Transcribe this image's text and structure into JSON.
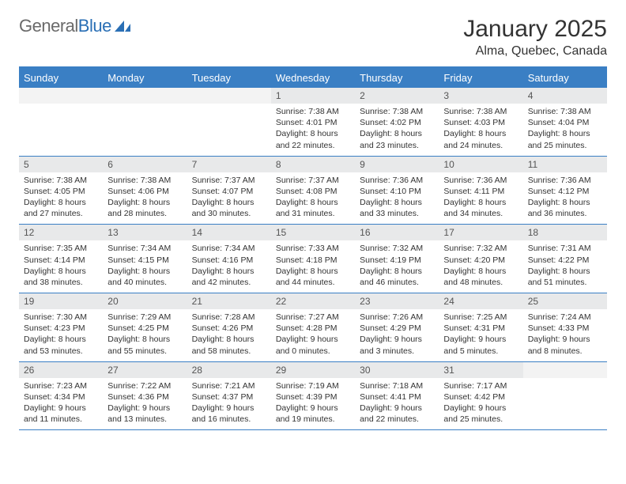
{
  "brand": {
    "part1": "General",
    "part2": "Blue"
  },
  "title": "January 2025",
  "location": "Alma, Quebec, Canada",
  "colors": {
    "header_bg": "#3a7fc4",
    "header_fg": "#ffffff",
    "daynum_bg": "#e8e9ea",
    "rule": "#3a7fc4",
    "text": "#333333"
  },
  "day_names": [
    "Sunday",
    "Monday",
    "Tuesday",
    "Wednesday",
    "Thursday",
    "Friday",
    "Saturday"
  ],
  "weeks": [
    [
      {
        "n": "",
        "sunrise": "",
        "sunset": "",
        "daylight1": "",
        "daylight2": ""
      },
      {
        "n": "",
        "sunrise": "",
        "sunset": "",
        "daylight1": "",
        "daylight2": ""
      },
      {
        "n": "",
        "sunrise": "",
        "sunset": "",
        "daylight1": "",
        "daylight2": ""
      },
      {
        "n": "1",
        "sunrise": "Sunrise: 7:38 AM",
        "sunset": "Sunset: 4:01 PM",
        "daylight1": "Daylight: 8 hours",
        "daylight2": "and 22 minutes."
      },
      {
        "n": "2",
        "sunrise": "Sunrise: 7:38 AM",
        "sunset": "Sunset: 4:02 PM",
        "daylight1": "Daylight: 8 hours",
        "daylight2": "and 23 minutes."
      },
      {
        "n": "3",
        "sunrise": "Sunrise: 7:38 AM",
        "sunset": "Sunset: 4:03 PM",
        "daylight1": "Daylight: 8 hours",
        "daylight2": "and 24 minutes."
      },
      {
        "n": "4",
        "sunrise": "Sunrise: 7:38 AM",
        "sunset": "Sunset: 4:04 PM",
        "daylight1": "Daylight: 8 hours",
        "daylight2": "and 25 minutes."
      }
    ],
    [
      {
        "n": "5",
        "sunrise": "Sunrise: 7:38 AM",
        "sunset": "Sunset: 4:05 PM",
        "daylight1": "Daylight: 8 hours",
        "daylight2": "and 27 minutes."
      },
      {
        "n": "6",
        "sunrise": "Sunrise: 7:38 AM",
        "sunset": "Sunset: 4:06 PM",
        "daylight1": "Daylight: 8 hours",
        "daylight2": "and 28 minutes."
      },
      {
        "n": "7",
        "sunrise": "Sunrise: 7:37 AM",
        "sunset": "Sunset: 4:07 PM",
        "daylight1": "Daylight: 8 hours",
        "daylight2": "and 30 minutes."
      },
      {
        "n": "8",
        "sunrise": "Sunrise: 7:37 AM",
        "sunset": "Sunset: 4:08 PM",
        "daylight1": "Daylight: 8 hours",
        "daylight2": "and 31 minutes."
      },
      {
        "n": "9",
        "sunrise": "Sunrise: 7:36 AM",
        "sunset": "Sunset: 4:10 PM",
        "daylight1": "Daylight: 8 hours",
        "daylight2": "and 33 minutes."
      },
      {
        "n": "10",
        "sunrise": "Sunrise: 7:36 AM",
        "sunset": "Sunset: 4:11 PM",
        "daylight1": "Daylight: 8 hours",
        "daylight2": "and 34 minutes."
      },
      {
        "n": "11",
        "sunrise": "Sunrise: 7:36 AM",
        "sunset": "Sunset: 4:12 PM",
        "daylight1": "Daylight: 8 hours",
        "daylight2": "and 36 minutes."
      }
    ],
    [
      {
        "n": "12",
        "sunrise": "Sunrise: 7:35 AM",
        "sunset": "Sunset: 4:14 PM",
        "daylight1": "Daylight: 8 hours",
        "daylight2": "and 38 minutes."
      },
      {
        "n": "13",
        "sunrise": "Sunrise: 7:34 AM",
        "sunset": "Sunset: 4:15 PM",
        "daylight1": "Daylight: 8 hours",
        "daylight2": "and 40 minutes."
      },
      {
        "n": "14",
        "sunrise": "Sunrise: 7:34 AM",
        "sunset": "Sunset: 4:16 PM",
        "daylight1": "Daylight: 8 hours",
        "daylight2": "and 42 minutes."
      },
      {
        "n": "15",
        "sunrise": "Sunrise: 7:33 AM",
        "sunset": "Sunset: 4:18 PM",
        "daylight1": "Daylight: 8 hours",
        "daylight2": "and 44 minutes."
      },
      {
        "n": "16",
        "sunrise": "Sunrise: 7:32 AM",
        "sunset": "Sunset: 4:19 PM",
        "daylight1": "Daylight: 8 hours",
        "daylight2": "and 46 minutes."
      },
      {
        "n": "17",
        "sunrise": "Sunrise: 7:32 AM",
        "sunset": "Sunset: 4:20 PM",
        "daylight1": "Daylight: 8 hours",
        "daylight2": "and 48 minutes."
      },
      {
        "n": "18",
        "sunrise": "Sunrise: 7:31 AM",
        "sunset": "Sunset: 4:22 PM",
        "daylight1": "Daylight: 8 hours",
        "daylight2": "and 51 minutes."
      }
    ],
    [
      {
        "n": "19",
        "sunrise": "Sunrise: 7:30 AM",
        "sunset": "Sunset: 4:23 PM",
        "daylight1": "Daylight: 8 hours",
        "daylight2": "and 53 minutes."
      },
      {
        "n": "20",
        "sunrise": "Sunrise: 7:29 AM",
        "sunset": "Sunset: 4:25 PM",
        "daylight1": "Daylight: 8 hours",
        "daylight2": "and 55 minutes."
      },
      {
        "n": "21",
        "sunrise": "Sunrise: 7:28 AM",
        "sunset": "Sunset: 4:26 PM",
        "daylight1": "Daylight: 8 hours",
        "daylight2": "and 58 minutes."
      },
      {
        "n": "22",
        "sunrise": "Sunrise: 7:27 AM",
        "sunset": "Sunset: 4:28 PM",
        "daylight1": "Daylight: 9 hours",
        "daylight2": "and 0 minutes."
      },
      {
        "n": "23",
        "sunrise": "Sunrise: 7:26 AM",
        "sunset": "Sunset: 4:29 PM",
        "daylight1": "Daylight: 9 hours",
        "daylight2": "and 3 minutes."
      },
      {
        "n": "24",
        "sunrise": "Sunrise: 7:25 AM",
        "sunset": "Sunset: 4:31 PM",
        "daylight1": "Daylight: 9 hours",
        "daylight2": "and 5 minutes."
      },
      {
        "n": "25",
        "sunrise": "Sunrise: 7:24 AM",
        "sunset": "Sunset: 4:33 PM",
        "daylight1": "Daylight: 9 hours",
        "daylight2": "and 8 minutes."
      }
    ],
    [
      {
        "n": "26",
        "sunrise": "Sunrise: 7:23 AM",
        "sunset": "Sunset: 4:34 PM",
        "daylight1": "Daylight: 9 hours",
        "daylight2": "and 11 minutes."
      },
      {
        "n": "27",
        "sunrise": "Sunrise: 7:22 AM",
        "sunset": "Sunset: 4:36 PM",
        "daylight1": "Daylight: 9 hours",
        "daylight2": "and 13 minutes."
      },
      {
        "n": "28",
        "sunrise": "Sunrise: 7:21 AM",
        "sunset": "Sunset: 4:37 PM",
        "daylight1": "Daylight: 9 hours",
        "daylight2": "and 16 minutes."
      },
      {
        "n": "29",
        "sunrise": "Sunrise: 7:19 AM",
        "sunset": "Sunset: 4:39 PM",
        "daylight1": "Daylight: 9 hours",
        "daylight2": "and 19 minutes."
      },
      {
        "n": "30",
        "sunrise": "Sunrise: 7:18 AM",
        "sunset": "Sunset: 4:41 PM",
        "daylight1": "Daylight: 9 hours",
        "daylight2": "and 22 minutes."
      },
      {
        "n": "31",
        "sunrise": "Sunrise: 7:17 AM",
        "sunset": "Sunset: 4:42 PM",
        "daylight1": "Daylight: 9 hours",
        "daylight2": "and 25 minutes."
      },
      {
        "n": "",
        "sunrise": "",
        "sunset": "",
        "daylight1": "",
        "daylight2": ""
      }
    ]
  ]
}
